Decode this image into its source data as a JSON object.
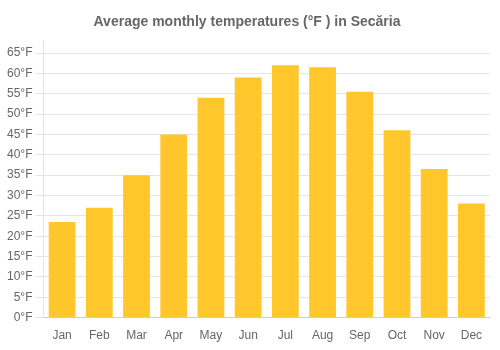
{
  "chart_data": {
    "type": "bar",
    "title": "Average monthly temperatures (°F ) in Secăria",
    "categories": [
      "Jan",
      "Feb",
      "Mar",
      "Apr",
      "May",
      "Jun",
      "Jul",
      "Aug",
      "Sep",
      "Oct",
      "Nov",
      "Dec"
    ],
    "values": [
      23.5,
      27.0,
      35.0,
      45.0,
      54.0,
      59.0,
      62.0,
      61.5,
      55.5,
      46.0,
      36.5,
      28.0
    ],
    "color": "#FFC72C",
    "ylim": [
      0,
      68
    ],
    "yticks": [
      {
        "value": 0,
        "label": "0°F"
      },
      {
        "value": 5,
        "label": "5°F"
      },
      {
        "value": 10,
        "label": "10°F"
      },
      {
        "value": 15,
        "label": "15°F"
      },
      {
        "value": 20,
        "label": "20°F"
      },
      {
        "value": 25,
        "label": "25°F"
      },
      {
        "value": 30,
        "label": "30°F"
      },
      {
        "value": 35,
        "label": "35°F"
      },
      {
        "value": 40,
        "label": "40°F"
      },
      {
        "value": 45,
        "label": "45°F"
      },
      {
        "value": 50,
        "label": "50°F"
      },
      {
        "value": 55,
        "label": "55°F"
      },
      {
        "value": 60,
        "label": "60°F"
      },
      {
        "value": 65,
        "label": "65°F"
      }
    ],
    "grid": true
  }
}
